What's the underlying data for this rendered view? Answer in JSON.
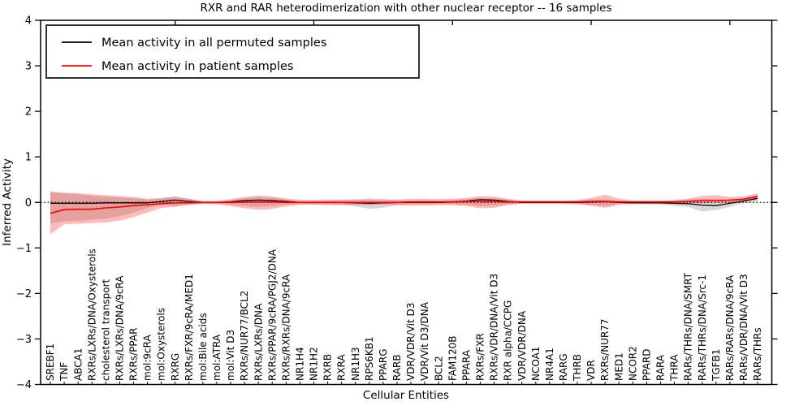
{
  "figure": {
    "title": "RXR and RAR heterodimerization with other nuclear receptor -- 16 samples",
    "xlabel": "Cellular Entities",
    "ylabel": "Inferred Activity"
  },
  "legend": {
    "items": [
      {
        "label": "Mean activity in all permuted samples",
        "color": "#000000"
      },
      {
        "label": "Mean activity in patient samples",
        "color": "#ff0000"
      }
    ]
  },
  "chart_data": {
    "type": "line",
    "title": "RXR and RAR heterodimerization with other nuclear receptor -- 16 samples",
    "xlabel": "Cellular Entities",
    "ylabel": "Inferred Activity",
    "ylim": [
      -4,
      4
    ],
    "yticks": [
      4,
      3,
      2,
      1,
      0,
      -1,
      -2,
      -3,
      -4
    ],
    "ytick_labels": [
      "4",
      "3",
      "2",
      "1",
      "0",
      "−1",
      "−2",
      "−3",
      "−4"
    ],
    "x_major_tick_indices": [
      9,
      19,
      29,
      39,
      49
    ],
    "grid": false,
    "zero_line_dotted": true,
    "legend_position": "upper left",
    "categories": [
      "SREBF1",
      "TNF",
      "ABCA1",
      "RXRs/LXRs/DNA/Oxysterols",
      "cholesterol transport",
      "RXRs/LXRs/DNA/9cRA",
      "RXRs/PPAR",
      "mol:9cRA",
      "mol:Oxysterols",
      "RXRG",
      "RXRs/FXR/9cRA/MED1",
      "mol:Bile acids",
      "mol:ATRA",
      "mol:Vit D3",
      "RXRs/NUR77/BCL2",
      "RXRs/LXRs/DNA",
      "RXRs/PPAR/9cRA/PGJ2/DNA",
      "RXRs/RXRs/DNA/9cRA",
      "NR1H4",
      "NR1H2",
      "RXRB",
      "RXRA",
      "NR1H3",
      "RPS6KB1",
      "PPARG",
      "RARB",
      "VDR/VDR/Vit D3",
      "VDR/Vit D3/DNA",
      "BCL2",
      "FAM120B",
      "PPARA",
      "RXRs/FXR",
      "RXRs/VDR/DNA/Vit D3",
      "RXR alpha/CCPG",
      "VDR/VDR/DNA",
      "NCOA1",
      "NR4A1",
      "RARG",
      "THRB",
      "VDR",
      "RXRs/NUR77",
      "MED1",
      "NCOR2",
      "PPARD",
      "RARA",
      "THRA",
      "RARs/THRs/DNA/SMRT",
      "RARs/THRs/DNA/Src-1",
      "TGFB1",
      "RARs/RARs/DNA/9cRA",
      "RARs/VDR/DNA/Vit D3",
      "RARs/THRs"
    ],
    "series": [
      {
        "name": "Mean activity in all permuted samples",
        "color": "#000000",
        "line_width": 1.3,
        "values": [
          -0.02,
          -0.02,
          -0.02,
          -0.02,
          -0.01,
          -0.01,
          -0.01,
          -0.01,
          0.02,
          0.05,
          0.02,
          0.0,
          0.0,
          0.01,
          0.04,
          0.05,
          0.04,
          0.02,
          0.0,
          0.0,
          0.0,
          0.0,
          -0.01,
          -0.02,
          -0.01,
          0.0,
          0.0,
          0.0,
          0.0,
          0.01,
          0.03,
          0.06,
          0.05,
          0.02,
          0.0,
          0.0,
          0.0,
          0.0,
          0.0,
          0.01,
          0.02,
          0.0,
          -0.01,
          -0.01,
          -0.01,
          -0.02,
          -0.03,
          -0.06,
          -0.07,
          -0.02,
          0.03,
          0.09
        ],
        "band": {
          "fill": "#999999",
          "opacity": 0.38,
          "upper": [
            0.22,
            0.2,
            0.18,
            0.15,
            0.13,
            0.11,
            0.09,
            0.06,
            0.08,
            0.12,
            0.07,
            0.03,
            0.03,
            0.05,
            0.09,
            0.12,
            0.1,
            0.06,
            0.04,
            0.04,
            0.04,
            0.05,
            0.07,
            0.09,
            0.08,
            0.05,
            0.04,
            0.04,
            0.04,
            0.05,
            0.07,
            0.1,
            0.09,
            0.06,
            0.03,
            0.03,
            0.03,
            0.03,
            0.04,
            0.05,
            0.07,
            0.04,
            0.03,
            0.03,
            0.03,
            0.04,
            0.05,
            0.08,
            0.07,
            0.05,
            0.1,
            0.16
          ],
          "lower": [
            -0.46,
            -0.42,
            -0.4,
            -0.38,
            -0.36,
            -0.3,
            -0.22,
            -0.12,
            -0.05,
            -0.08,
            -0.04,
            -0.03,
            -0.03,
            -0.05,
            -0.08,
            -0.1,
            -0.08,
            -0.05,
            -0.04,
            -0.04,
            -0.04,
            -0.05,
            -0.09,
            -0.14,
            -0.12,
            -0.06,
            -0.04,
            -0.04,
            -0.04,
            -0.04,
            -0.05,
            -0.08,
            -0.07,
            -0.04,
            -0.03,
            -0.03,
            -0.03,
            -0.03,
            -0.04,
            -0.06,
            -0.08,
            -0.04,
            -0.04,
            -0.04,
            -0.05,
            -0.08,
            -0.1,
            -0.2,
            -0.17,
            -0.1,
            -0.02,
            0.02
          ]
        }
      },
      {
        "name": "Mean activity in patient samples",
        "color": "#ff0000",
        "line_width": 1.6,
        "values": [
          -0.24,
          -0.16,
          -0.15,
          -0.15,
          -0.12,
          -0.1,
          -0.07,
          -0.05,
          -0.03,
          -0.01,
          -0.01,
          0.0,
          0.0,
          0.0,
          0.01,
          0.01,
          0.01,
          0.0,
          0.0,
          0.0,
          0.0,
          0.0,
          0.0,
          0.0,
          0.0,
          0.0,
          0.01,
          0.01,
          0.01,
          0.01,
          0.02,
          0.02,
          0.02,
          0.01,
          0.01,
          0.01,
          0.01,
          0.01,
          0.01,
          0.02,
          0.02,
          0.01,
          0.01,
          0.01,
          0.01,
          0.01,
          0.02,
          0.04,
          0.04,
          0.05,
          0.07,
          0.13
        ],
        "band": {
          "fill": "#ff1a1a",
          "opacity": 0.3,
          "upper": [
            0.24,
            0.21,
            0.2,
            0.18,
            0.16,
            0.14,
            0.12,
            0.08,
            0.1,
            0.13,
            0.08,
            0.03,
            0.03,
            0.07,
            0.12,
            0.15,
            0.13,
            0.09,
            0.05,
            0.05,
            0.06,
            0.06,
            0.05,
            0.06,
            0.05,
            0.06,
            0.08,
            0.08,
            0.07,
            0.08,
            0.1,
            0.14,
            0.13,
            0.08,
            0.04,
            0.04,
            0.04,
            0.04,
            0.05,
            0.1,
            0.17,
            0.08,
            0.04,
            0.04,
            0.04,
            0.05,
            0.08,
            0.14,
            0.16,
            0.12,
            0.13,
            0.2
          ],
          "lower": [
            -0.7,
            -0.48,
            -0.47,
            -0.45,
            -0.44,
            -0.4,
            -0.32,
            -0.22,
            -0.12,
            -0.1,
            -0.06,
            -0.03,
            -0.04,
            -0.08,
            -0.13,
            -0.16,
            -0.14,
            -0.09,
            -0.05,
            -0.05,
            -0.06,
            -0.06,
            -0.05,
            -0.06,
            -0.05,
            -0.06,
            -0.07,
            -0.07,
            -0.06,
            -0.06,
            -0.08,
            -0.13,
            -0.12,
            -0.06,
            -0.03,
            -0.03,
            -0.03,
            -0.03,
            -0.04,
            -0.07,
            -0.12,
            -0.05,
            -0.02,
            -0.02,
            -0.02,
            -0.02,
            -0.02,
            -0.02,
            -0.01,
            0.0,
            0.02,
            0.05
          ]
        }
      }
    ]
  }
}
